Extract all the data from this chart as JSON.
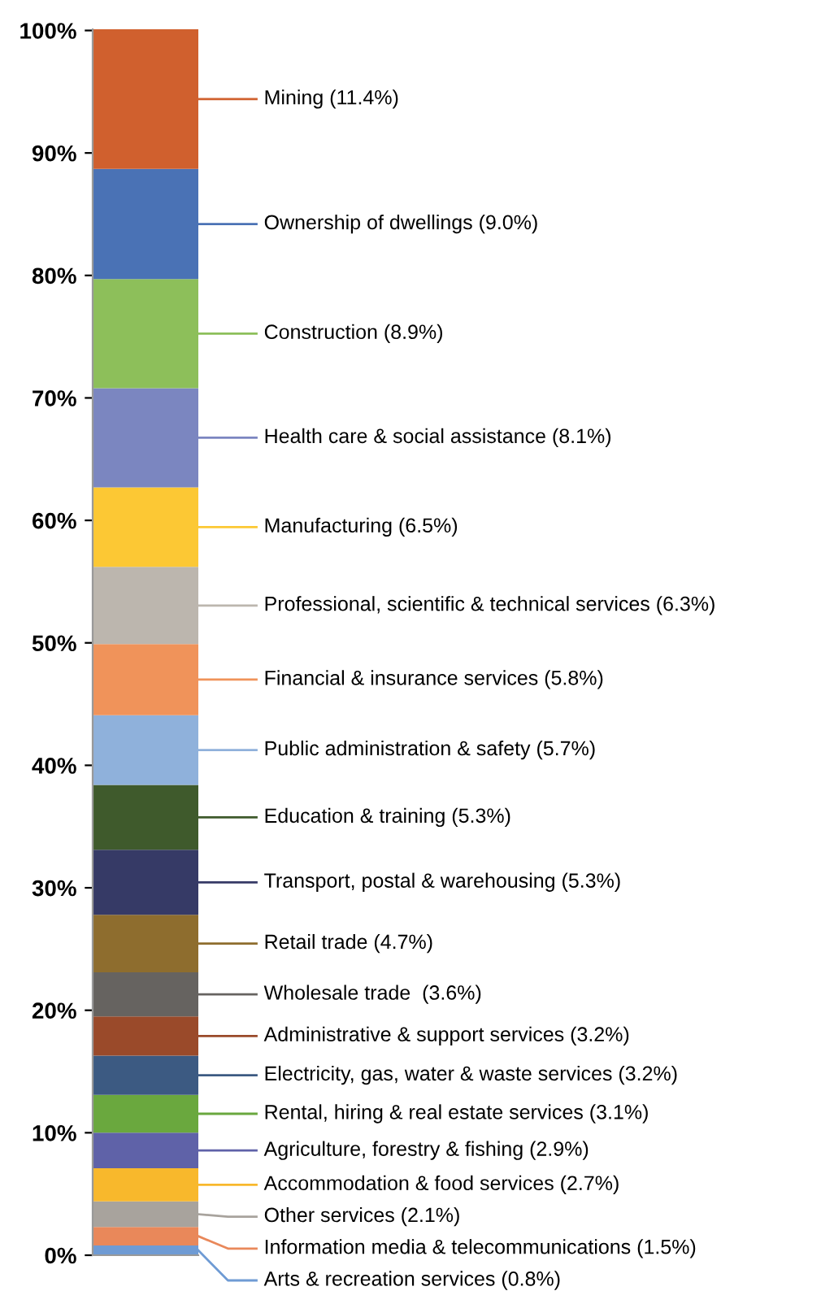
{
  "chart_data": {
    "type": "bar",
    "stacked": true,
    "categories": [
      null
    ],
    "ylim": [
      0,
      100.1
    ],
    "yticks": [
      {
        "value": 0,
        "label": "0%"
      },
      {
        "value": 10,
        "label": "10%"
      },
      {
        "value": 20,
        "label": "20%"
      },
      {
        "value": 30,
        "label": "30%"
      },
      {
        "value": 40,
        "label": "40%"
      },
      {
        "value": 50,
        "label": "50%"
      },
      {
        "value": 60,
        "label": "60%"
      },
      {
        "value": 70,
        "label": "70%"
      },
      {
        "value": 80,
        "label": "80%"
      },
      {
        "value": 90,
        "label": "90%"
      },
      {
        "value": 100,
        "label": "100%"
      }
    ],
    "grid": false,
    "legend": "right",
    "series": [
      {
        "name": "Arts & recreation services (0.8%)",
        "color": "#6f9bd4",
        "values": [
          0.8
        ]
      },
      {
        "name": "Information media & telecommunications (1.5%)",
        "color": "#e9885a",
        "values": [
          1.5
        ]
      },
      {
        "name": "Other services (2.1%)",
        "color": "#a8a39d",
        "values": [
          2.1
        ]
      },
      {
        "name": "Accommodation & food services (2.7%)",
        "color": "#f8b82c",
        "values": [
          2.7
        ]
      },
      {
        "name": "Agriculture, forestry & fishing (2.9%)",
        "color": "#5f62a8",
        "values": [
          2.9
        ]
      },
      {
        "name": "Rental, hiring & real estate services (3.1%)",
        "color": "#6aa83e",
        "values": [
          3.1
        ]
      },
      {
        "name": "Electricity, gas, water & waste services (3.2%)",
        "color": "#3c5a82",
        "values": [
          3.2
        ]
      },
      {
        "name": "Administrative & support services (3.2%)",
        "color": "#9a4a2a",
        "values": [
          3.2
        ]
      },
      {
        "name": "Wholesale trade  (3.6%)",
        "color": "#666360",
        "values": [
          3.6
        ]
      },
      {
        "name": "Retail trade (4.7%)",
        "color": "#8e6d2e",
        "values": [
          4.7
        ]
      },
      {
        "name": "Transport, postal & warehousing (5.3%)",
        "color": "#363a66",
        "values": [
          5.3
        ]
      },
      {
        "name": "Education & training (5.3%)",
        "color": "#3f5a2c",
        "values": [
          5.3
        ]
      },
      {
        "name": "Public administration & safety (5.7%)",
        "color": "#8fb1db",
        "values": [
          5.7
        ]
      },
      {
        "name": "Financial & insurance services (5.8%)",
        "color": "#f0935a",
        "values": [
          5.8
        ]
      },
      {
        "name": "Professional, scientific & technical services (6.3%)",
        "color": "#bcb6ae",
        "values": [
          6.3
        ]
      },
      {
        "name": "Manufacturing (6.5%)",
        "color": "#fcc834",
        "values": [
          6.5
        ]
      },
      {
        "name": "Health care & social assistance (8.1%)",
        "color": "#7b86c0",
        "values": [
          8.1
        ]
      },
      {
        "name": "Construction (8.9%)",
        "color": "#8dbf5a",
        "values": [
          8.9
        ]
      },
      {
        "name": "Ownership of dwellings (9.0%)",
        "color": "#4a72b5",
        "values": [
          9.0
        ]
      },
      {
        "name": "Mining (11.4%)",
        "color": "#d0602e",
        "values": [
          11.4
        ]
      }
    ]
  }
}
